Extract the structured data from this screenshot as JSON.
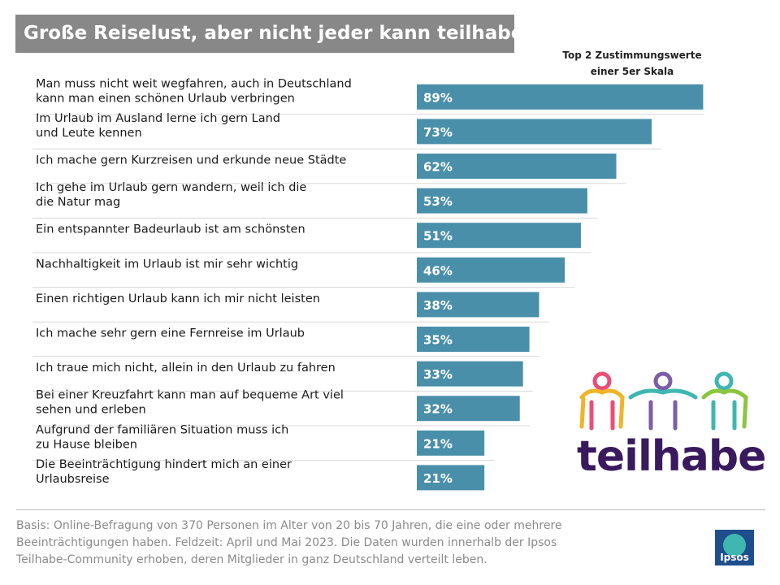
{
  "title": "Große Reiselust, aber nicht jeder kann teilhaben",
  "scale_note_line1": "Top 2 Zustimmungswerte",
  "scale_note_line2": "einer 5er Skala",
  "chart_data": {
    "type": "bar",
    "orientation": "horizontal",
    "title": "Große Reiselust, aber nicht jeder kann teilhaben",
    "subtitle": "Top 2 Zustimmungswerte einer 5er Skala",
    "categories": [
      [
        "Man muss nicht weit wegfahren, auch in Deutschland",
        "kann man einen schönen Urlaub verbringen"
      ],
      [
        "Im Urlaub im Ausland lerne ich gern Land",
        "und Leute kennen"
      ],
      [
        "Ich mache gern Kurzreisen und erkunde neue Städte"
      ],
      [
        "Ich gehe im Urlaub gern wandern, weil ich die",
        "die Natur mag"
      ],
      [
        "Ein entspannter Badeurlaub ist am schönsten"
      ],
      [
        "Nachhaltigkeit im Urlaub ist mir sehr wichtig"
      ],
      [
        "Einen richtigen Urlaub kann ich mir nicht leisten"
      ],
      [
        "Ich mache sehr gern eine Fernreise im Urlaub"
      ],
      [
        "Ich traue mich nicht, allein in den Urlaub zu fahren"
      ],
      [
        "Bei einer Kreuzfahrt kann man auf bequeme Art viel",
        "sehen und erleben"
      ],
      [
        "Aufgrund der familiären Situation muss ich",
        "zu Hause bleiben"
      ],
      [
        "Die Beeinträchtigung hindert mich an einer",
        "Urlaubsreise"
      ]
    ],
    "values": [
      89,
      73,
      62,
      53,
      51,
      46,
      38,
      35,
      33,
      32,
      21,
      21
    ],
    "value_labels": [
      "89%",
      "73%",
      "62%",
      "53%",
      "51%",
      "46%",
      "38%",
      "35%",
      "33%",
      "32%",
      "21%",
      "21%"
    ],
    "xlim": [
      0,
      100
    ],
    "unit": "%",
    "bar_color": "#4a8faa"
  },
  "logo": {
    "text": "teilhabe",
    "colors": [
      "#f0b429",
      "#e94e77",
      "#7b5ea7",
      "#3fb7b0",
      "#8cc63f"
    ]
  },
  "footer": {
    "line1": "Basis: Online-Befragung von 370 Personen im Alter von 20 bis 70 Jahren, die eine oder mehrere",
    "line2": "Beeinträchtigungen haben. Feldzeit: April und Mai 2023. Die Daten wurden innerhalb der Ipsos",
    "line3": "Teilhabe-Community erhoben, deren Mitglieder in ganz Deutschland verteilt leben."
  },
  "brand": "Ipsos"
}
